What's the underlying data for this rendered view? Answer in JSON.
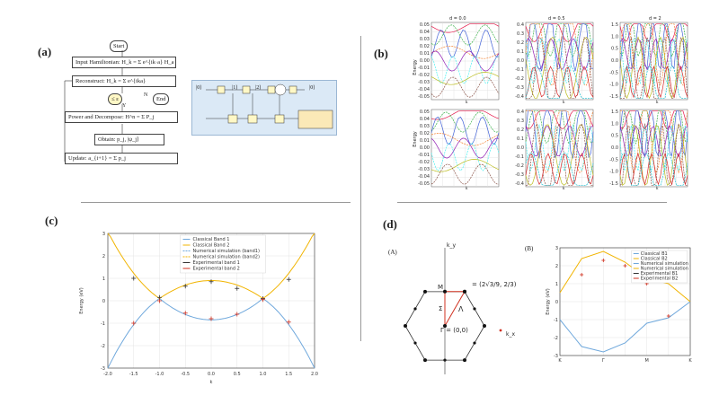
{
  "labels": {
    "a": "(a)",
    "b": "(b)",
    "c": "(c)",
    "d": "(d)"
  },
  "flowchart": {
    "start": "Start",
    "input": "Input Hamiltonian",
    "reconstruct": "Reconstruct",
    "condition": "≤ ε",
    "end": "End",
    "yes": "Y",
    "no": "N",
    "power": "Power and Decompose",
    "obtain": "Obtain",
    "update": "Update"
  },
  "circuit": {
    "q0": "|0⟩",
    "q1": "|1⟩",
    "q2": "|2⟩",
    "out": "|0⟩"
  },
  "panel_b": {
    "titles": [
      "d = 0.0",
      "d = 0.5",
      "d = 2"
    ],
    "ylabel": "Energy",
    "xlabel": "k",
    "ticks_col1": [
      "0.05",
      "0.04",
      "0.03",
      "0.02",
      "0.01",
      "0.00",
      "-0.01",
      "-0.02",
      "-0.03",
      "-0.04",
      "-0.05"
    ],
    "ticks_col2": [
      "0.4",
      "0.3",
      "0.2",
      "0.1",
      "0.0",
      "-0.1",
      "-0.2",
      "-0.3",
      "-0.4"
    ],
    "ticks_col3": [
      "1.5",
      "1.0",
      "0.5",
      "0.0",
      "-0.5",
      "-1.0",
      "-1.5"
    ]
  },
  "chart_data": [
    {
      "type": "line",
      "title": "",
      "xlabel": "k",
      "ylabel": "Energy (eV)",
      "xlim": [
        -2.0,
        2.0
      ],
      "ylim": [
        -3,
        3
      ],
      "xticks": [
        "-2.0",
        "-1.5",
        "-1.0",
        "-0.5",
        "0.0",
        "0.5",
        "1.0",
        "1.5",
        "2.0"
      ],
      "yticks": [
        "3",
        "2",
        "1",
        "0",
        "-1",
        "-2",
        "-3"
      ],
      "legend": [
        "Classical Band 1",
        "Classical Band 2",
        "Numerical simulation (band1)",
        "Numerical simulation (band2)",
        "Experimental band 1",
        "Experimental band 2"
      ],
      "series": [
        {
          "name": "Classical Band 1",
          "color": "#6fa8dc",
          "x": [
            -2.0,
            -1.5,
            -1.0,
            -0.5,
            0.0,
            0.5,
            1.0,
            1.5,
            2.0
          ],
          "y": [
            -3.0,
            -1.0,
            0.1,
            -0.6,
            -0.8,
            -0.6,
            0.1,
            -1.0,
            -3.0
          ]
        },
        {
          "name": "Classical Band 2",
          "color": "#f1b400",
          "x": [
            -2.0,
            -1.5,
            -1.0,
            -0.5,
            0.0,
            0.5,
            1.0,
            1.5,
            2.0
          ],
          "y": [
            3.0,
            1.0,
            0.1,
            0.7,
            0.9,
            0.7,
            0.1,
            1.0,
            3.0
          ]
        },
        {
          "name": "Experimental band 1",
          "color": "#333333",
          "x": [
            -1.5,
            -1.0,
            -0.5,
            0.0,
            0.5,
            1.0,
            1.5
          ],
          "y": [
            1.0,
            0.15,
            0.65,
            0.85,
            0.55,
            0.1,
            0.95
          ]
        },
        {
          "name": "Experimental band 2",
          "color": "#d0301f",
          "x": [
            -1.5,
            -1.0,
            -0.5,
            0.0,
            0.5,
            1.0,
            1.5
          ],
          "y": [
            -1.0,
            0.0,
            -0.55,
            -0.8,
            -0.6,
            0.05,
            -0.95
          ]
        }
      ]
    },
    {
      "type": "line",
      "xlabel": "",
      "ylabel": "Energy (eV)",
      "xticks": [
        "K",
        "Γ",
        "M",
        "K"
      ],
      "yticks": [
        "3",
        "2",
        "1",
        "0",
        "-1",
        "-2",
        "-3"
      ],
      "ylim": [
        -3,
        3
      ],
      "legend": [
        "Classical B1",
        "Classical B2",
        "Numerical simulation",
        "Numerical simulation",
        "Experimental B1",
        "Experimental B2"
      ],
      "series": [
        {
          "name": "Classical B1",
          "color": "#6fa8dc",
          "x": [
            0,
            1,
            2,
            3,
            4,
            5,
            6
          ],
          "y": [
            -1.0,
            -2.5,
            -2.8,
            -2.3,
            -1.2,
            -0.9,
            0.0
          ]
        },
        {
          "name": "Classical B2",
          "color": "#f1b400",
          "x": [
            0,
            1,
            2,
            3,
            4,
            5,
            6
          ],
          "y": [
            0.5,
            2.4,
            2.8,
            2.2,
            1.3,
            1.0,
            0.0
          ]
        },
        {
          "name": "Experimental B2",
          "color": "#d0301f",
          "x": [
            1,
            2,
            3,
            4,
            5
          ],
          "y": [
            1.5,
            2.3,
            2.0,
            1.0,
            -0.8
          ]
        }
      ]
    }
  ],
  "panel_d": {
    "sub_a": "(A)",
    "sub_b": "(B)",
    "point_M": "M",
    "point_gamma": "Γ = (0,0)",
    "point_K_lambda": "Λ",
    "point_X": "Σ",
    "coords": "= (2√3/9, 2/3)",
    "axis_ky": "k_y",
    "axis_kx": "k_x"
  }
}
